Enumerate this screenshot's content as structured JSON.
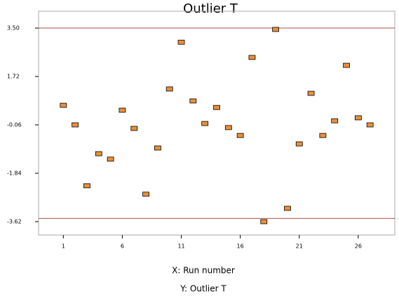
{
  "chart_data": {
    "type": "scatter",
    "title": "Outlier T",
    "x_label": "X: Run number",
    "y_label": "Y: Outlier T",
    "x": [
      1,
      2,
      3,
      4,
      5,
      6,
      7,
      8,
      9,
      10,
      11,
      12,
      13,
      14,
      15,
      16,
      17,
      18,
      19,
      20,
      21,
      22,
      23,
      24,
      25,
      26,
      27
    ],
    "values": [
      0.66,
      -0.06,
      -2.3,
      -1.12,
      -1.32,
      0.48,
      -0.19,
      -2.61,
      -0.91,
      1.26,
      2.98,
      0.82,
      -0.01,
      0.58,
      -0.16,
      -0.45,
      2.42,
      -3.62,
      3.45,
      -3.13,
      -0.76,
      1.1,
      -0.45,
      0.09,
      2.13,
      0.2,
      -0.06
    ],
    "color": "#e8903a",
    "limits": [
      3.5,
      -3.5
    ],
    "limit_color": "#b0504a",
    "xlim": [
      -1.1,
      29.1
    ],
    "ylim": [
      -4.11,
      4.12
    ],
    "xticks": [
      1,
      6,
      11,
      16,
      21,
      26
    ],
    "yticks": [
      {
        "value": 3.5,
        "label": "3.50"
      },
      1.72,
      -0.06,
      -1.84,
      -3.62
    ],
    "grid": false
  }
}
